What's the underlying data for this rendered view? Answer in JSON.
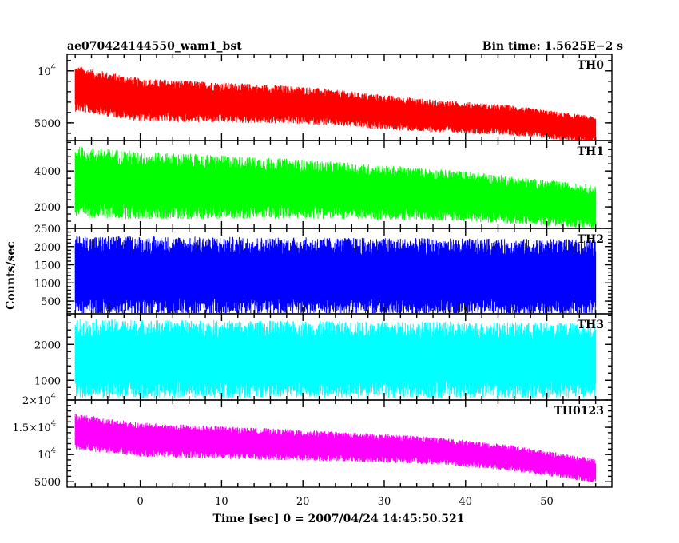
{
  "header": {
    "title": "ae070424144550_wam1_bst",
    "bin_time": "Bin time: 1.5625E−2 s"
  },
  "chart_data": {
    "type": "line",
    "ylabel": "Counts/sec",
    "xlabel": "Time [sec] 0 = 2007/04/24 14:45:50.521",
    "x_range": [
      -9,
      58
    ],
    "x_ticks": [
      0,
      10,
      20,
      30,
      40,
      50
    ],
    "x_tick_labels": [
      "0",
      "10",
      "20",
      "30",
      "40",
      "50"
    ],
    "data_start": -8,
    "data_end": 56,
    "panels": [
      {
        "name": "TH0",
        "color": "#ff0000",
        "ylim": [
          3300,
          11600
        ],
        "y_ticks": [
          5000,
          10000
        ],
        "y_tick_labels": [
          [
            "5000",
            ""
          ],
          [
            "10",
            "4"
          ]
        ],
        "trend": [
          [
            -8,
            8300
          ],
          [
            0,
            7200
          ],
          [
            20,
            6700
          ],
          [
            35,
            5700
          ],
          [
            45,
            5300
          ],
          [
            56,
            4300
          ]
        ],
        "spread": [
          [
            -8,
            2200
          ],
          [
            56,
            1300
          ]
        ]
      },
      {
        "name": "TH1",
        "color": "#00ff00",
        "ylim": [
          800,
          5700
        ],
        "y_ticks": [
          2000,
          4000
        ],
        "y_tick_labels": [
          [
            "2000",
            ""
          ],
          [
            "4000",
            ""
          ]
        ],
        "trend": [
          [
            -8,
            3400
          ],
          [
            0,
            3200
          ],
          [
            20,
            3000
          ],
          [
            40,
            2600
          ],
          [
            56,
            2000
          ]
        ],
        "spread": [
          [
            -8,
            2000
          ],
          [
            56,
            1200
          ]
        ]
      },
      {
        "name": "TH2",
        "color": "#0000ff",
        "ylim": [
          150,
          2500
        ],
        "y_ticks": [
          500,
          1000,
          1500,
          2000,
          2500
        ],
        "y_tick_labels": [
          [
            "500",
            ""
          ],
          [
            "1000",
            ""
          ],
          [
            "1500",
            ""
          ],
          [
            "2000",
            ""
          ],
          [
            "2500",
            ""
          ]
        ],
        "trend": [
          [
            -8,
            1200
          ],
          [
            56,
            1150
          ]
        ],
        "spread": [
          [
            -8,
            1100
          ],
          [
            56,
            1050
          ]
        ]
      },
      {
        "name": "TH3",
        "color": "#00ffff",
        "ylim": [
          450,
          2850
        ],
        "y_ticks": [
          1000,
          2000
        ],
        "y_tick_labels": [
          [
            "1000",
            ""
          ],
          [
            "2000",
            ""
          ]
        ],
        "trend": [
          [
            -8,
            1600
          ],
          [
            56,
            1550
          ]
        ],
        "spread": [
          [
            -8,
            1100
          ],
          [
            56,
            1050
          ]
        ]
      },
      {
        "name": "TH0123",
        "color": "#ff00ff",
        "ylim": [
          4000,
          20000
        ],
        "y_ticks": [
          5000,
          10000,
          15000,
          20000
        ],
        "y_tick_labels": [
          [
            "5000",
            ""
          ],
          [
            "10",
            "4"
          ],
          [
            "1.5×10",
            "4"
          ],
          [
            "2×10",
            "4"
          ]
        ],
        "trend": [
          [
            -8,
            14200
          ],
          [
            0,
            12700
          ],
          [
            20,
            11700
          ],
          [
            35,
            10800
          ],
          [
            45,
            9500
          ],
          [
            56,
            7000
          ]
        ],
        "spread": [
          [
            -8,
            3300
          ],
          [
            56,
            2200
          ]
        ]
      }
    ]
  }
}
